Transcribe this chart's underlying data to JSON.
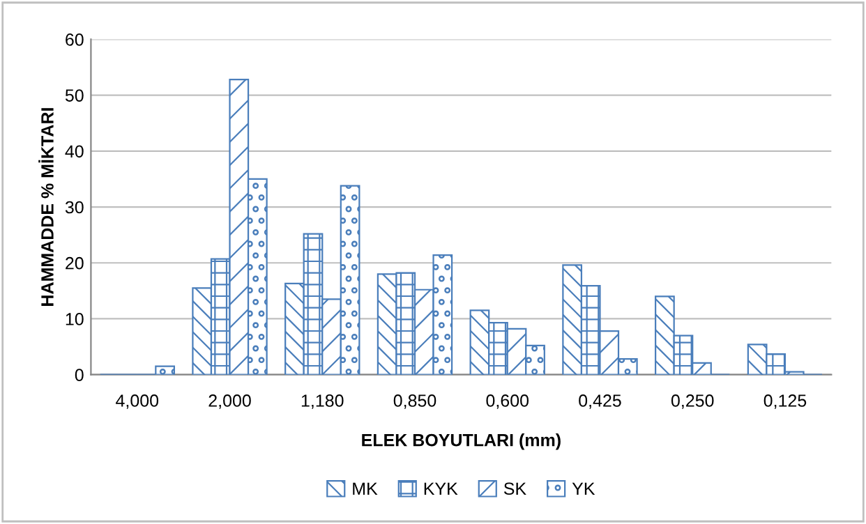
{
  "chart_data": {
    "type": "bar",
    "xlabel": "ELEK BOYUTLARI (mm)",
    "ylabel": "HAMMADDE % MİKTARI",
    "categories": [
      "4,000",
      "2,000",
      "1,180",
      "0,850",
      "0,600",
      "0,425",
      "0,250",
      "0,125"
    ],
    "series": [
      {
        "name": "MK",
        "color": "#4a7ebb",
        "values": [
          0,
          15.5,
          16.3,
          18,
          11.5,
          19.6,
          14,
          5.4
        ]
      },
      {
        "name": "KYK",
        "color": "#4a7ebb",
        "values": [
          0,
          20.7,
          25.2,
          18.2,
          9.3,
          15.9,
          7,
          3.7
        ]
      },
      {
        "name": "SK",
        "color": "#4a7ebb",
        "values": [
          0,
          52.8,
          13.5,
          15.2,
          8.2,
          7.8,
          2.1,
          0.5
        ]
      },
      {
        "name": "YK",
        "color": "#4a7ebb",
        "values": [
          1.5,
          35,
          33.8,
          21.4,
          5.2,
          2.8,
          0,
          0
        ]
      }
    ],
    "ylim": [
      0,
      60
    ],
    "yticks": [
      0,
      10,
      20,
      30,
      40,
      50,
      60
    ],
    "grid": "y",
    "legend": "bottom"
  }
}
